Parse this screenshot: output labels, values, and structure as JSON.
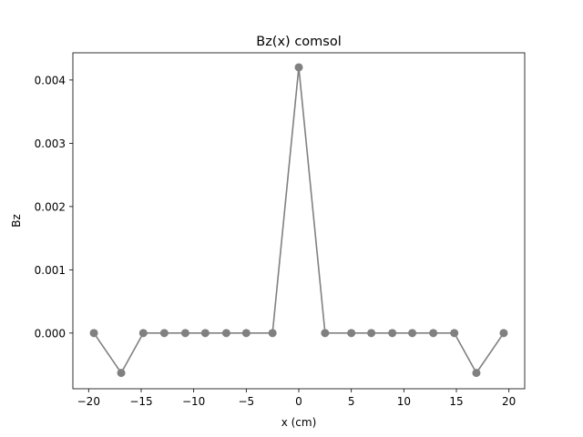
{
  "chart_data": {
    "type": "line",
    "title": "Bz(x) comsol",
    "xlabel": "x (cm)",
    "ylabel": "Bz",
    "xlim": [
      -21.5,
      21.5
    ],
    "ylim": [
      -0.00088,
      0.00443
    ],
    "xticks": [
      -20,
      -15,
      -10,
      -5,
      0,
      5,
      10,
      15,
      20
    ],
    "xtick_labels": [
      "−20",
      "−15",
      "−10",
      "−5",
      "0",
      "5",
      "10",
      "15",
      "20"
    ],
    "yticks": [
      0.0,
      0.001,
      0.002,
      0.003,
      0.004
    ],
    "ytick_labels": [
      "0.000",
      "0.001",
      "0.002",
      "0.003",
      "0.004"
    ],
    "grid": false,
    "series": [
      {
        "color": "#808080",
        "marker": "circle",
        "x": [
          -19.5,
          -16.9,
          -14.8,
          -12.8,
          -10.8,
          -8.9,
          -6.9,
          -5.0,
          -2.5,
          0,
          2.5,
          5.0,
          6.9,
          8.9,
          10.8,
          12.8,
          14.8,
          16.9,
          19.5
        ],
        "y": [
          0.0,
          -0.00063,
          0.0,
          0.0,
          0.0,
          0.0,
          0.0,
          0.0,
          0.0,
          0.0042,
          0.0,
          0.0,
          0.0,
          0.0,
          0.0,
          0.0,
          0.0,
          -0.00063,
          0.0
        ]
      }
    ]
  }
}
